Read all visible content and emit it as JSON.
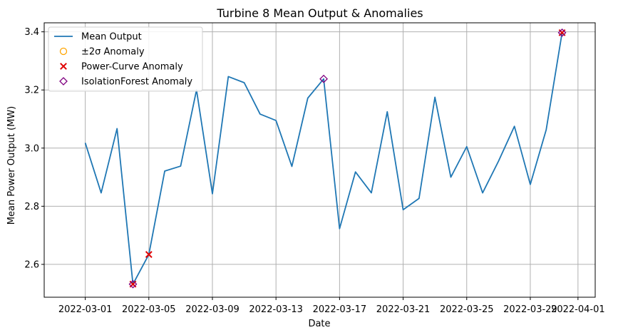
{
  "chart_data": {
    "type": "line",
    "title": "Turbine 8 Mean Output & Anomalies",
    "xlabel": "Date",
    "ylabel": "Mean Power Output (MW)",
    "xlim": [
      "2022-02-26T10:00",
      "2022-04-02T02:00"
    ],
    "ylim": [
      2.487,
      3.431
    ],
    "grid": true,
    "legend_position": "upper-left",
    "x_ticks": [
      "2022-03-01",
      "2022-03-05",
      "2022-03-09",
      "2022-03-13",
      "2022-03-17",
      "2022-03-21",
      "2022-03-25",
      "2022-03-29",
      "2022-04-01"
    ],
    "y_ticks": [
      "2.6",
      "2.8",
      "3.0",
      "3.2",
      "3.4"
    ],
    "legend": [
      "Mean Output",
      "±2σ Anomaly",
      "Power-Curve Anomaly",
      "IsolationForest Anomaly"
    ],
    "series": [
      {
        "name": "Mean Output",
        "kind": "line",
        "color": "#1f77b4",
        "points": [
          [
            "2022-03-01",
            3.018
          ],
          [
            "2022-03-02",
            2.846
          ],
          [
            "2022-03-03",
            3.067
          ],
          [
            "2022-03-04",
            2.532
          ],
          [
            "2022-03-05",
            2.634
          ],
          [
            "2022-03-06",
            2.921
          ],
          [
            "2022-03-07",
            2.938
          ],
          [
            "2022-03-08",
            3.2
          ],
          [
            "2022-03-09",
            2.843
          ],
          [
            "2022-03-10",
            3.246
          ],
          [
            "2022-03-11",
            3.225
          ],
          [
            "2022-03-12",
            3.117
          ],
          [
            "2022-03-13",
            3.095
          ],
          [
            "2022-03-14",
            2.937
          ],
          [
            "2022-03-15",
            3.172
          ],
          [
            "2022-03-16",
            3.238
          ],
          [
            "2022-03-17",
            2.723
          ],
          [
            "2022-03-18",
            2.918
          ],
          [
            "2022-03-19",
            2.846
          ],
          [
            "2022-03-20",
            3.125
          ],
          [
            "2022-03-21",
            2.788
          ],
          [
            "2022-03-22",
            2.827
          ],
          [
            "2022-03-23",
            3.175
          ],
          [
            "2022-03-24",
            2.9
          ],
          [
            "2022-03-25",
            3.005
          ],
          [
            "2022-03-26",
            2.846
          ],
          [
            "2022-03-27",
            2.955
          ],
          [
            "2022-03-28",
            3.075
          ],
          [
            "2022-03-29",
            2.875
          ],
          [
            "2022-03-30",
            3.063
          ],
          [
            "2022-03-31",
            3.397
          ]
        ]
      },
      {
        "name": "±2σ Anomaly",
        "kind": "circle",
        "color": "#ffa500",
        "points": []
      },
      {
        "name": "Power-Curve Anomaly",
        "kind": "x",
        "color": "#e00000",
        "points": [
          [
            "2022-03-04",
            2.532
          ],
          [
            "2022-03-05",
            2.634
          ],
          [
            "2022-03-31",
            3.397
          ]
        ]
      },
      {
        "name": "IsolationForest Anomaly",
        "kind": "diamond",
        "color": "#800080",
        "points": [
          [
            "2022-03-04",
            2.532
          ],
          [
            "2022-03-16",
            3.238
          ],
          [
            "2022-03-31",
            3.397
          ]
        ]
      }
    ]
  }
}
